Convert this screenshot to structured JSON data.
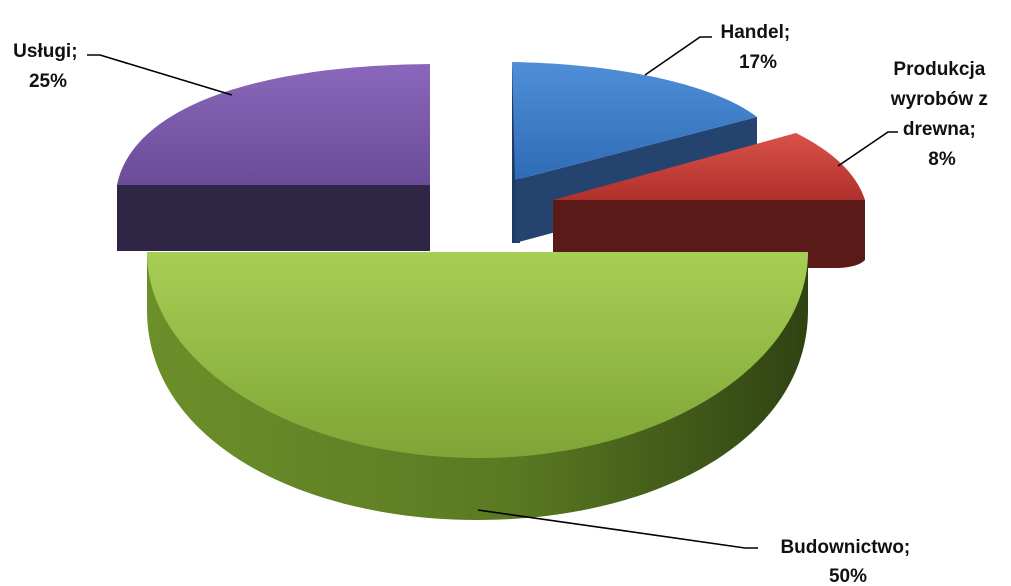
{
  "chart_data": {
    "type": "pie",
    "style": "3d-exploded",
    "title": "",
    "categories": [
      "Handel",
      "Produkcja wyrobów z drewna",
      "Budownictwo",
      "Usługi"
    ],
    "values": [
      17,
      8,
      50,
      25
    ],
    "unit": "%",
    "colors": [
      "#3f7fcc",
      "#c63e38",
      "#8ab83a",
      "#6d4f9c"
    ],
    "labels": [
      {
        "lines": [
          "Handel;",
          "17%"
        ]
      },
      {
        "lines": [
          "Produkcja",
          "wyrobów z",
          "drewna;",
          "8%"
        ]
      },
      {
        "lines": [
          "Budownictwo;",
          "50%"
        ]
      },
      {
        "lines": [
          "Usługi;",
          "25%"
        ]
      }
    ],
    "legend": "none"
  }
}
